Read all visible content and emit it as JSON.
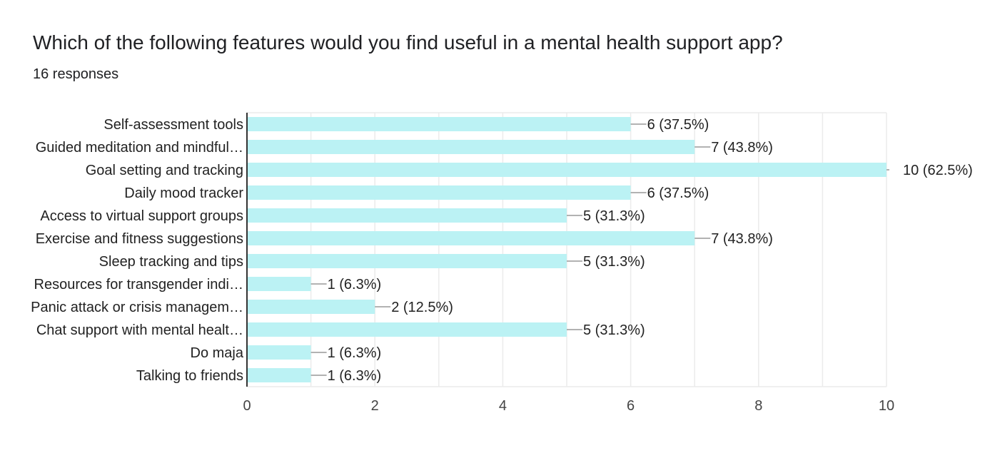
{
  "header": {
    "title": "Which of the following features would you find useful in a mental health support app?",
    "responses": "16 responses"
  },
  "colors": {
    "bar": "#bbf2f4",
    "grid": "#ebebeb",
    "axis": "#333333",
    "leader": "#999999"
  },
  "chart_data": {
    "type": "bar",
    "orientation": "horizontal",
    "title": "Which of the following features would you find useful in a mental health support app?",
    "subtitle": "16 responses",
    "categories": [
      "Self-assessment tools",
      "Guided meditation and mindful…",
      "Goal setting and tracking",
      "Daily mood tracker",
      "Access to virtual support groups",
      "Exercise and fitness suggestions",
      "Sleep tracking and tips",
      "Resources for transgender indi…",
      "Panic attack or crisis managem…",
      "Chat support with mental healt…",
      "Do maja",
      "Talking to friends"
    ],
    "values": [
      6,
      7,
      10,
      6,
      5,
      7,
      5,
      1,
      2,
      5,
      1,
      1
    ],
    "data_labels": [
      "6 (37.5%)",
      "7 (43.8%)",
      "10 (62.5%)",
      "6 (37.5%)",
      "5 (31.3%)",
      "7 (43.8%)",
      "5 (31.3%)",
      "1 (6.3%)",
      "2 (12.5%)",
      "5 (31.3%)",
      "1 (6.3%)",
      "1 (6.3%)"
    ],
    "xlim": [
      0,
      10
    ],
    "xticks": [
      0,
      2,
      4,
      6,
      8,
      10
    ],
    "grid": true,
    "legend": "none"
  }
}
